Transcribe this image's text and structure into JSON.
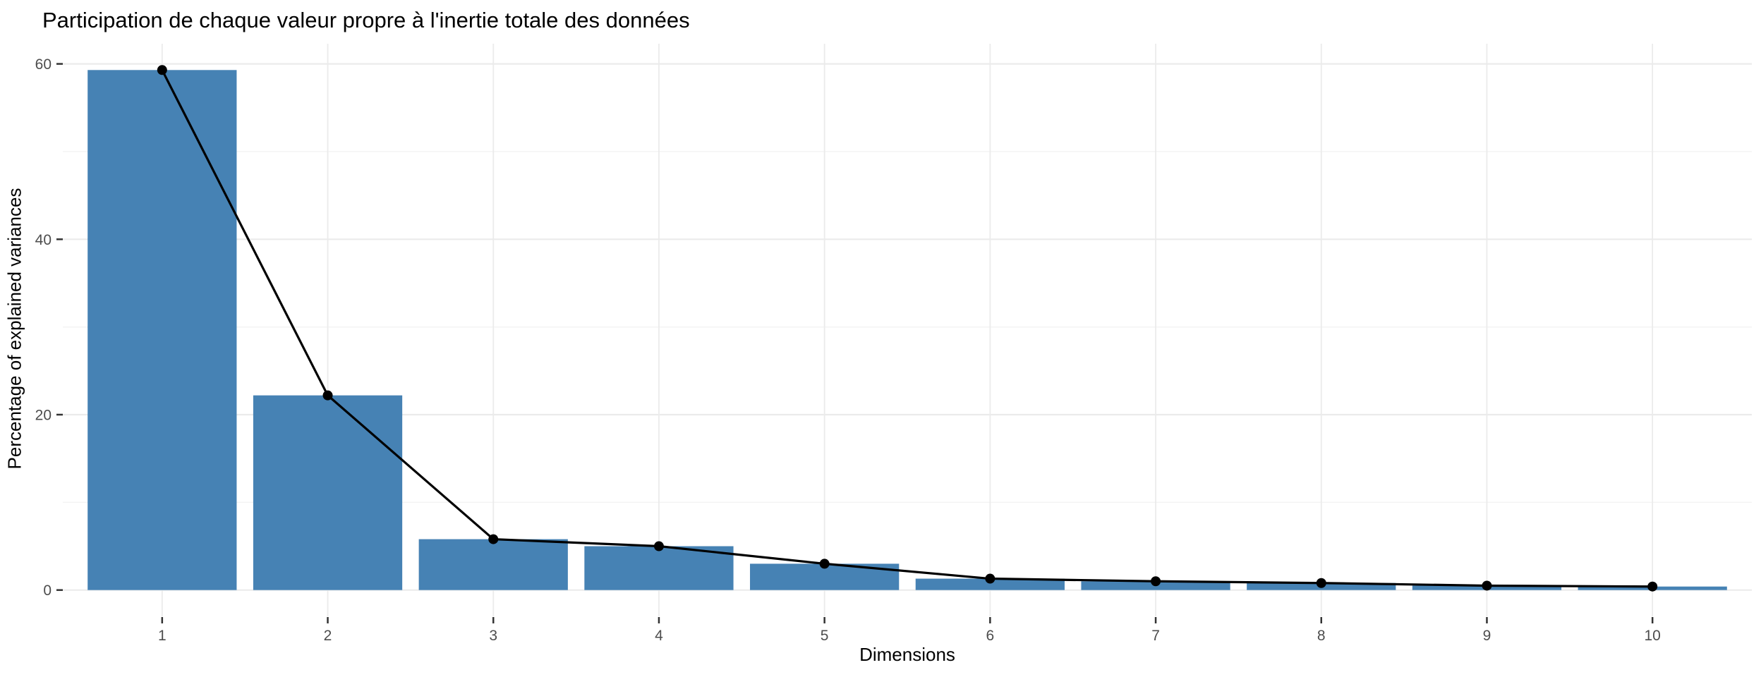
{
  "chart_data": {
    "type": "bar",
    "variant": "scree-plot (eigenvalue bars with connected line+point overlay of the same values)",
    "title": "Participation de chaque valeur propre à l'inertie totale des données",
    "xlabel": "Dimensions",
    "ylabel": "Percentage of explained variances",
    "categories": [
      "1",
      "2",
      "3",
      "4",
      "5",
      "6",
      "7",
      "8",
      "9",
      "10"
    ],
    "values": [
      59.3,
      22.2,
      5.8,
      5.0,
      3.0,
      1.3,
      1.0,
      0.8,
      0.5,
      0.4
    ],
    "overlay_line": {
      "marker": "filled-circle",
      "values": [
        59.3,
        22.2,
        5.8,
        5.0,
        3.0,
        1.3,
        1.0,
        0.8,
        0.5,
        0.4
      ]
    },
    "yticks": [
      0,
      20,
      40,
      60
    ],
    "yticks_minor": [
      10,
      30,
      50
    ],
    "ylim": [
      -3,
      62.3
    ],
    "grid": "horizontal major+minor gridlines, vertical major gridlines at each dimension",
    "legend": "none",
    "colors": {
      "bar_fill": "#4682B4",
      "line": "#000000",
      "point": "#000000",
      "grid_major": "#EBEBEB",
      "grid_minor": "#F3F3F3",
      "axis_tick": "#333333",
      "axis_text": "#4D4D4D",
      "title_text": "#000000",
      "background": "#FFFFFF"
    }
  }
}
